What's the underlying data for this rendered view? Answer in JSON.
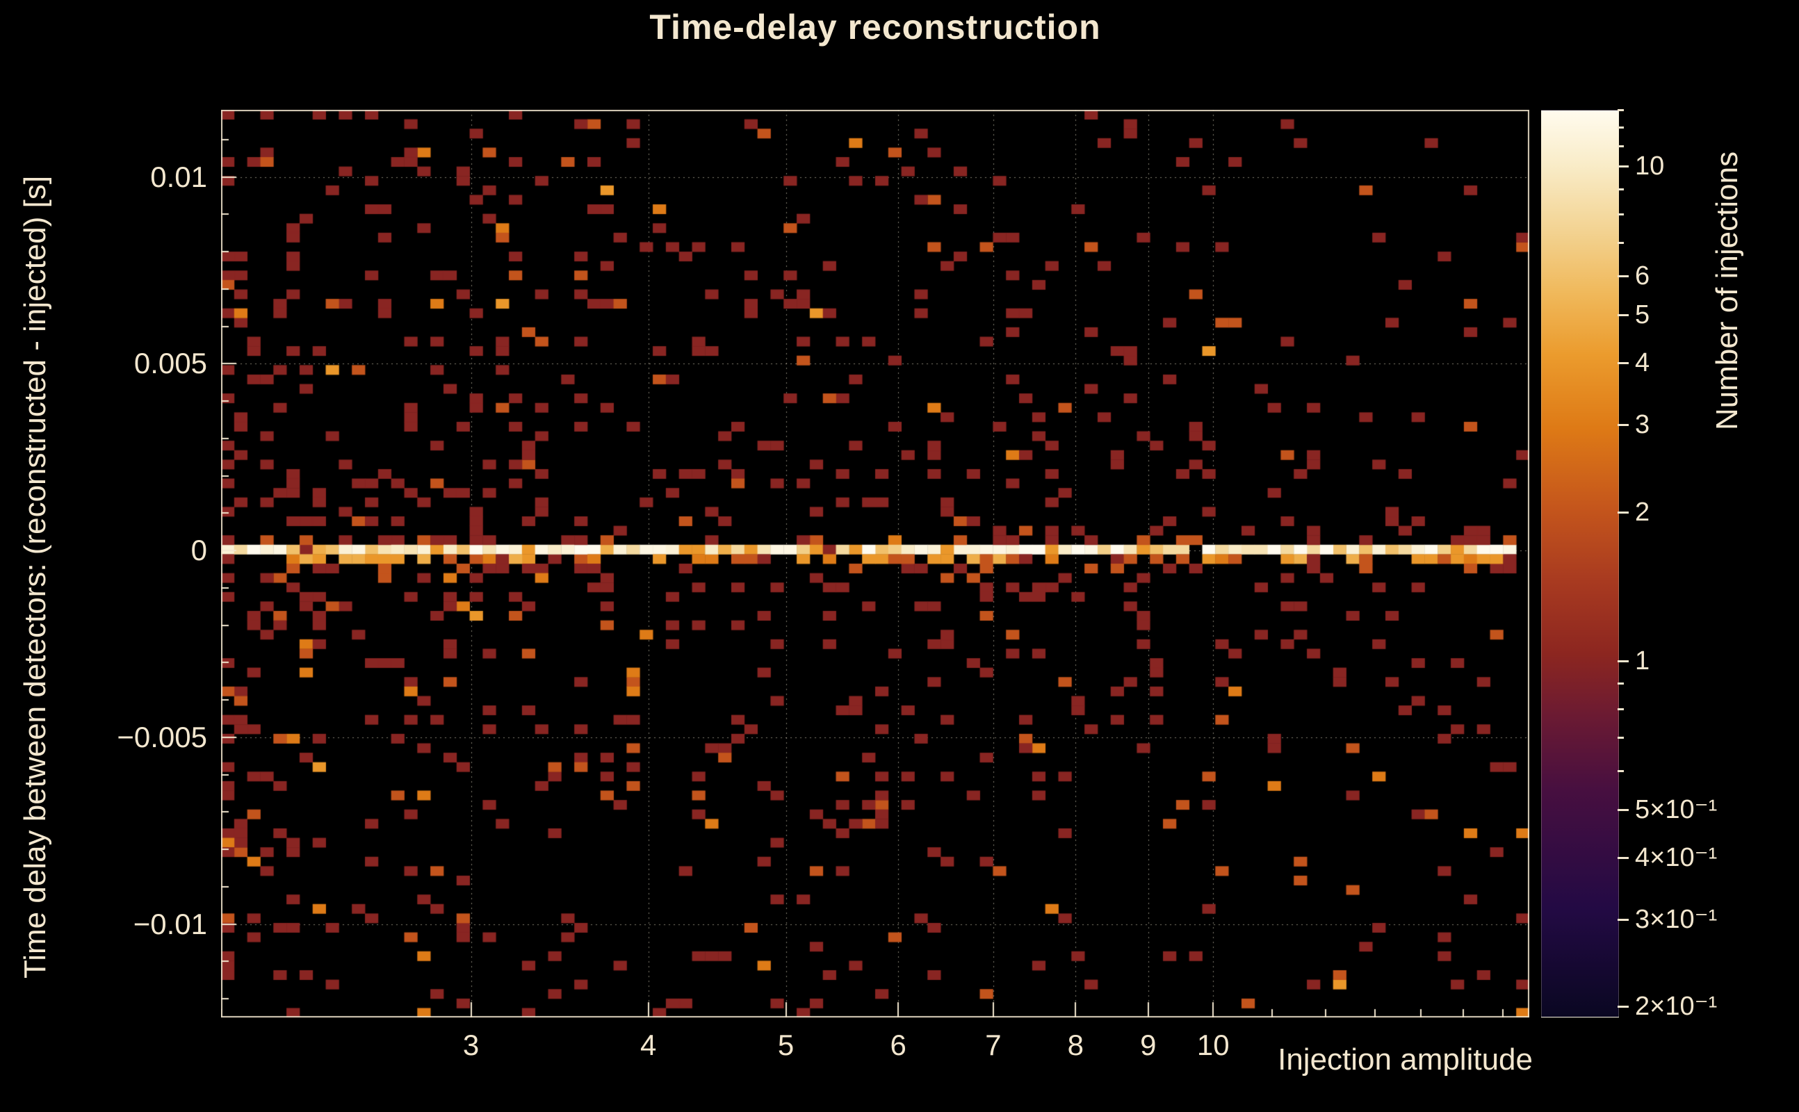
{
  "title": "Time-delay reconstruction",
  "colors": {
    "background": "#000000",
    "text": "#f3e7cf",
    "grid": "#f3e7cf",
    "frame": "#f3e7cf"
  },
  "axes": {
    "x": {
      "label": "Injection amplitude",
      "scale": "log",
      "range": [
        2.0,
        16.7
      ],
      "tick_values": [
        3,
        4,
        5,
        6,
        7,
        8,
        9,
        10
      ],
      "tick_labels": [
        "3",
        "4",
        "5",
        "6",
        "7",
        "8",
        "9",
        "10"
      ],
      "minor_tick_values": [
        2,
        11,
        12,
        13,
        14,
        15,
        16
      ]
    },
    "y": {
      "label": "Time delay between detectors: (reconstructed - injected) [s]",
      "range": [
        -0.0125,
        0.0118
      ],
      "ticks": [
        {
          "value": 0.01,
          "label": "0.01"
        },
        {
          "value": 0.005,
          "label": "0.005"
        },
        {
          "value": 0,
          "label": "0"
        },
        {
          "value": -0.005,
          "label": "−0.005"
        },
        {
          "value": -0.01,
          "label": "−0.01"
        }
      ],
      "minor_step": 0.001
    }
  },
  "colorbar": {
    "label": "Number of injections",
    "scale": "log",
    "range": [
      0.19,
      13
    ],
    "ticks": [
      {
        "value": 10,
        "label": "10"
      },
      {
        "value": 6,
        "label": "6"
      },
      {
        "value": 5,
        "label": "5"
      },
      {
        "value": 4,
        "label": "4"
      },
      {
        "value": 3,
        "label": "3"
      },
      {
        "value": 2,
        "label": "2"
      },
      {
        "value": 1,
        "label": "1"
      },
      {
        "value": 0.5,
        "label": "5×10⁻¹"
      },
      {
        "value": 0.4,
        "label": "4×10⁻¹"
      },
      {
        "value": 0.3,
        "label": "3×10⁻¹"
      },
      {
        "value": 0.2,
        "label": "2×10⁻¹"
      }
    ],
    "minor_ticks": [
      0.6,
      0.7,
      0.8,
      0.9,
      7,
      8,
      9,
      11,
      12,
      13
    ],
    "colormap": [
      [
        0.0,
        "#0a0722"
      ],
      [
        0.12,
        "#230a44"
      ],
      [
        0.25,
        "#470f40"
      ],
      [
        0.33,
        "#6a1a33"
      ],
      [
        0.4,
        "#8c2620"
      ],
      [
        0.48,
        "#a83a20"
      ],
      [
        0.56,
        "#c4551c"
      ],
      [
        0.65,
        "#de7a16"
      ],
      [
        0.73,
        "#eb9b2d"
      ],
      [
        0.8,
        "#f0b95c"
      ],
      [
        0.87,
        "#f3d494"
      ],
      [
        0.94,
        "#f9ecc8"
      ],
      [
        1.0,
        "#fffbee"
      ]
    ]
  },
  "chart_data": {
    "type": "heatmap",
    "title": "Time-delay reconstruction",
    "xlabel": "Injection amplitude",
    "ylabel": "Time delay between detectors: (reconstructed - injected) [s]",
    "zlabel": "Number of injections",
    "x_scale": "log",
    "x_range": [
      2.0,
      16.7
    ],
    "x_ticks": [
      3,
      4,
      5,
      6,
      7,
      8,
      9,
      10
    ],
    "y_range": [
      -0.0125,
      0.0118
    ],
    "y_ticks": [
      -0.01,
      -0.005,
      0,
      0.005,
      0.01
    ],
    "z_scale": "log",
    "z_range": [
      0.19,
      13
    ],
    "grid": true,
    "legend_position": "right-colorbar",
    "bins": {
      "nx": 100,
      "ny": 96
    },
    "pattern": {
      "description": "Bright horizontal ridge (4-13 injections per bin, cream/orange) at time delay = 0 spanning the full amplitude range; sparse scattered bins of 1-3 injections (dark red / orange) everywhere else, denser at low amplitude and near the ridge, fading toward high amplitude.",
      "seed": 20240613,
      "n_scatter": 850,
      "scatter_value_weights": {
        "1": 0.82,
        "2": 0.13,
        "3": 0.04,
        "4": 0.01
      },
      "ridge_row_value_range": [
        4,
        13
      ],
      "ridge_gap_probability": 0.05,
      "ridge_x_end_fraction": 0.98,
      "x_left_bias_power": 1.45,
      "y_center_mix": 0.3,
      "y_center_sigma": 0.16
    }
  }
}
